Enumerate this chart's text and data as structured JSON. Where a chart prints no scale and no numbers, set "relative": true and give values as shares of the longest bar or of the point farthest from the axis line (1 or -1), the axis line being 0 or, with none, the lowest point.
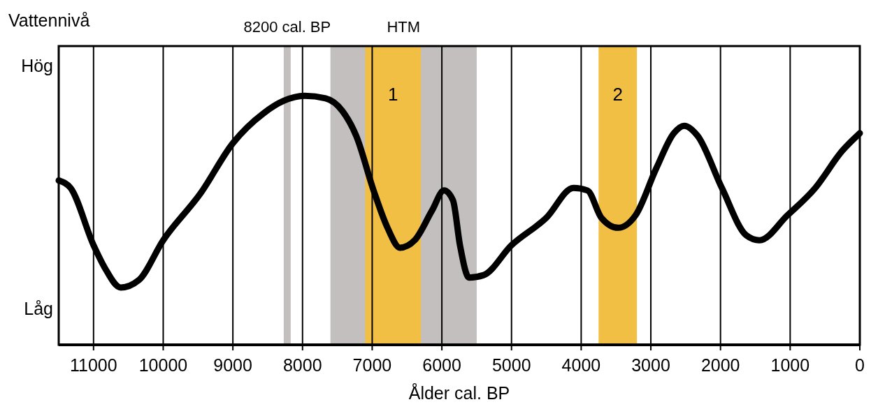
{
  "chart_data": {
    "type": "line",
    "xlabel": "Ålder cal. BP",
    "ylabel": "Vattennivå",
    "relative": true,
    "annotations": [
      "Hög",
      "Låg"
    ],
    "xlim": [
      11500,
      0
    ],
    "xticks": [
      11000,
      10000,
      9000,
      8000,
      7000,
      6000,
      5000,
      4000,
      3000,
      2000,
      1000,
      0
    ],
    "grid": "x",
    "line_style": "solid",
    "bands": [
      {
        "axis": "x",
        "from": 8270,
        "to": 8170,
        "label": "8200 cal. BP",
        "color": "#c3bfbf"
      },
      {
        "axis": "x",
        "from": 7600,
        "to": 5500,
        "label": "HTM",
        "color": "#c3bfbf"
      },
      {
        "axis": "x",
        "from": 7100,
        "to": 6300,
        "label": "1",
        "color": "#f2bf45"
      },
      {
        "axis": "x",
        "from": 3750,
        "to": 3200,
        "label": "2",
        "color": "#f2bf45"
      }
    ],
    "series": [
      {
        "color": "#000000",
        "x": [
          11500,
          11330,
          11000,
          10840,
          10610,
          10350,
          10000,
          9460,
          9000,
          8560,
          8270,
          7970,
          7670,
          7430,
          7230,
          6980,
          6780,
          6600,
          6390,
          6140,
          5970,
          5840,
          5740,
          5610,
          5400,
          5000,
          4500,
          4110,
          3910,
          3710,
          3470,
          3220,
          2920,
          2670,
          2520,
          2330,
          1980,
          1630,
          1440,
          1040,
          640,
          250,
          0
        ],
        "values": [
          0.66,
          0.63,
          0.4,
          0.31,
          0.23,
          0.26,
          0.42,
          0.61,
          0.81,
          0.93,
          0.98,
          1.0,
          0.99,
          0.94,
          0.84,
          0.62,
          0.47,
          0.39,
          0.42,
          0.54,
          0.62,
          0.58,
          0.4,
          0.27,
          0.28,
          0.4,
          0.51,
          0.63,
          0.62,
          0.51,
          0.47,
          0.52,
          0.71,
          0.85,
          0.88,
          0.84,
          0.63,
          0.44,
          0.42,
          0.52,
          0.63,
          0.78,
          0.85
        ]
      }
    ]
  }
}
